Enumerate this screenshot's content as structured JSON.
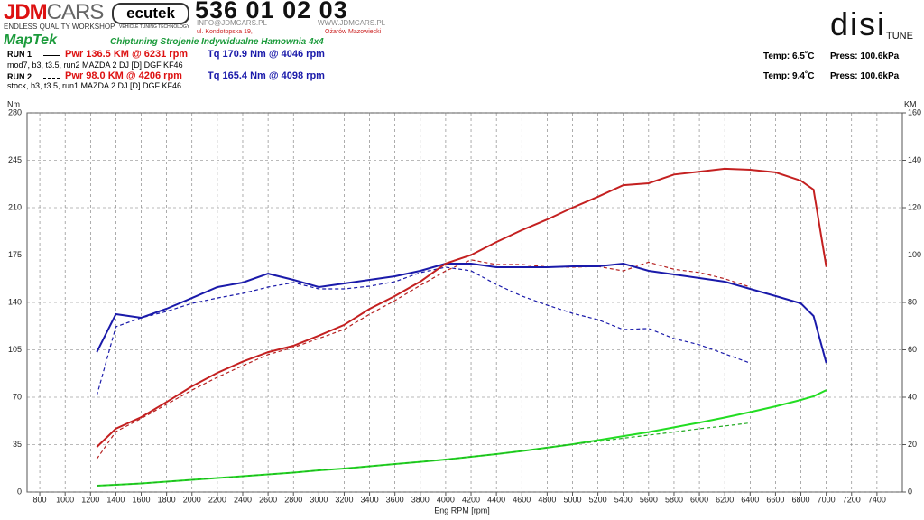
{
  "header": {
    "brand_a": "JDM",
    "brand_b": "CARS",
    "brand_tagline": "ENDLESS QUALITY WORKSHOP",
    "ecutek": "ecutek",
    "ecutek_tagline": "VEHICLE TUNING TECHNOLOGY",
    "phone": "536 01 02 03",
    "email": "INFO@JDMCARS.PL",
    "www": "WWW.JDMCARS.PL",
    "street": "ul. Kondotopska 19,",
    "city": "Ożarów Mazowiecki",
    "maptek": "MapTek",
    "maptek_tagline": "Chiptuning Strojenie Indywidualne Hamownia 4x4",
    "disi": "disi",
    "tune": "TUNE",
    "runs": [
      {
        "label": "RUN 1",
        "power": "Pwr  136.5 KM @ 6231 rpm",
        "torque": "Tq 170.9 Nm @ 4046 rpm",
        "notes": "mod7, b3, t3.5, run2 MAZDA 2 DJ [D] DGF KF46",
        "temp": "Temp: 6.5˚C",
        "press": "Press: 100.6kPa"
      },
      {
        "label": "RUN 2",
        "power": "Pwr  98.0 KM @ 4206 rpm",
        "torque": "Tq 165.4 Nm @ 4098 rpm",
        "notes": "stock, b3, t3.5, run1 MAZDA 2 DJ [D] DGF KF46",
        "temp": "Temp: 9.4˚C",
        "press": "Press: 100.6kPa"
      }
    ]
  },
  "chart_data": {
    "type": "line",
    "x_label": "Eng RPM [rpm]",
    "y_label": "Nm",
    "y2_label": "KM",
    "grid": true,
    "xlim": [
      700,
      7600
    ],
    "xticks": [
      800,
      1000,
      1200,
      1400,
      1600,
      1800,
      2000,
      2200,
      2400,
      2600,
      2800,
      3000,
      3200,
      3400,
      3600,
      3800,
      4000,
      4200,
      4400,
      4600,
      4800,
      5000,
      5200,
      5400,
      5600,
      5800,
      6000,
      6200,
      6400,
      6600,
      6800,
      7000,
      7200,
      7400
    ],
    "ylim": [
      0,
      280
    ],
    "yticks": [
      0,
      35,
      70,
      105,
      140,
      175,
      210,
      245,
      280
    ],
    "y2lim": [
      0,
      160
    ],
    "y2ticks": [
      0,
      20,
      40,
      60,
      80,
      100,
      120,
      140,
      160
    ],
    "x": [
      1250,
      1400,
      1600,
      1800,
      2000,
      2200,
      2400,
      2600,
      2800,
      3000,
      3200,
      3400,
      3600,
      3800,
      4000,
      4200,
      4400,
      4600,
      4800,
      5000,
      5200,
      5400,
      5600,
      5800,
      6000,
      6200,
      6400,
      6600,
      6800,
      6900,
      7000
    ],
    "series": [
      {
        "color": "#22dd22",
        "dash": false,
        "values": [
          4.7,
          5.3,
          6.3,
          7.7,
          9,
          10.3,
          11.7,
          13,
          14.3,
          16,
          17.3,
          19,
          20.7,
          22.3,
          24,
          26,
          28,
          30.3,
          32.7,
          35.3,
          38.3,
          41.3,
          44.3,
          47.7,
          51.3,
          55,
          59,
          63.3,
          68,
          70.7,
          75.3
        ]
      },
      {
        "color": "#22aa22",
        "dash": true,
        "values": [
          4.7,
          5.3,
          6.3,
          7.7,
          9,
          10.3,
          11.7,
          13,
          14.3,
          16,
          17.3,
          19,
          20.7,
          22.3,
          24,
          26,
          28,
          30.3,
          32.7,
          35.3,
          37.3,
          39.7,
          42,
          44.3,
          46.7,
          48.7,
          51,
          null,
          null,
          null,
          null
        ]
      },
      {
        "color": "#1a1aaa",
        "dash": true,
        "values": [
          71.3,
          122,
          128.7,
          133.3,
          139.3,
          143.3,
          146.7,
          151.3,
          154.7,
          150,
          150,
          152,
          155.3,
          162,
          166,
          163.3,
          153.3,
          144.7,
          138,
          132,
          127.3,
          120,
          120.7,
          113.3,
          108.7,
          102,
          95.3,
          null,
          null,
          null,
          null
        ]
      },
      {
        "color": "#b52020",
        "dash": true,
        "axis": "y2",
        "values": [
          14,
          25.5,
          31,
          37,
          43,
          48.4,
          53.3,
          58,
          61,
          64.8,
          68.6,
          75,
          80.8,
          87.2,
          93.3,
          98.0,
          96,
          96,
          95,
          94.9,
          95.2,
          93.3,
          97,
          94,
          92.6,
          90,
          86.5,
          null,
          null,
          null,
          null
        ]
      },
      {
        "color": "#1a1aaa",
        "dash": false,
        "values": [
          103.3,
          131.3,
          128.7,
          135.3,
          143.3,
          151.3,
          154.7,
          161.3,
          156.7,
          151.3,
          154,
          156.7,
          159.3,
          163.3,
          168.7,
          168.7,
          166,
          166,
          166,
          166.7,
          166.7,
          168.7,
          163.3,
          160.7,
          158,
          155.3,
          150,
          144.7,
          139.3,
          130,
          95.3
        ]
      },
      {
        "color": "#c42020",
        "dash": false,
        "axis": "y2",
        "values": [
          19,
          26.7,
          31.6,
          38,
          44.6,
          50.3,
          55,
          59,
          61.7,
          66,
          70.5,
          77.3,
          82.7,
          88.8,
          96.4,
          100,
          105.5,
          110.5,
          115,
          120,
          124.6,
          129.5,
          130.3,
          134,
          135.2,
          136.4,
          136,
          134.9,
          131.4,
          127.6,
          95
        ]
      }
    ]
  }
}
